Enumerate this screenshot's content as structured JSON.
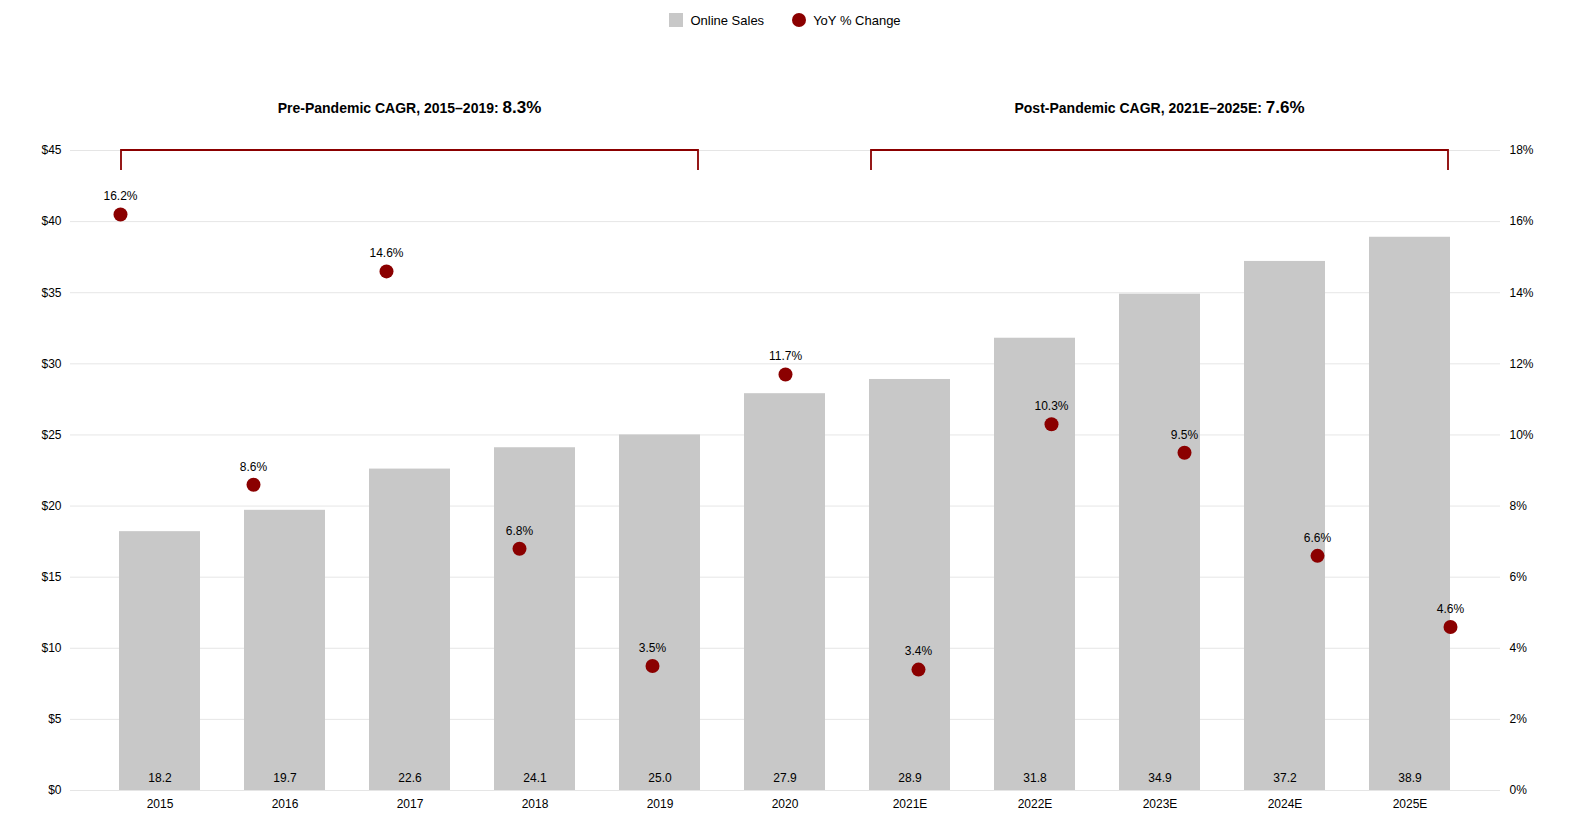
{
  "chart_data": {
    "type": "bar",
    "categories": [
      "2015",
      "2016",
      "2017",
      "2018",
      "2019",
      "2020",
      "2021E",
      "2022E",
      "2023E",
      "2024E",
      "2025E"
    ],
    "series": [
      {
        "name": "Online Sales",
        "type": "bar",
        "color": "#c8c8c8",
        "values": [
          18.2,
          19.7,
          22.6,
          24.1,
          25.0,
          27.9,
          28.9,
          31.8,
          34.9,
          37.2,
          38.9
        ],
        "value_labels": [
          "18.2",
          "19.7",
          "22.6",
          "24.1",
          "25.0",
          "27.9",
          "28.9",
          "31.8",
          "34.9",
          "37.2",
          "38.9"
        ]
      },
      {
        "name": "YoY % Change",
        "type": "scatter",
        "axis": "y2",
        "color": "#8b0000",
        "marker": "circle",
        "values": [
          16.2,
          8.6,
          14.6,
          6.8,
          3.5,
          11.7,
          3.4,
          10.3,
          9.5,
          6.6,
          4.6
        ],
        "value_labels": [
          "16.2%",
          "8.6%",
          "14.6%",
          "6.8%",
          "3.5%",
          "11.7%",
          "3.4%",
          "10.3%",
          "9.5%",
          "6.6%",
          "4.6%"
        ]
      }
    ],
    "ylim": [
      0,
      45
    ],
    "yticks": [
      {
        "value": 0,
        "label": "$0"
      },
      {
        "value": 5,
        "label": "$5"
      },
      {
        "value": 10,
        "label": "$10"
      },
      {
        "value": 15,
        "label": "$15"
      },
      {
        "value": 20,
        "label": "$20"
      },
      {
        "value": 25,
        "label": "$25"
      },
      {
        "value": 30,
        "label": "$30"
      },
      {
        "value": 35,
        "label": "$35"
      },
      {
        "value": 40,
        "label": "$40"
      },
      {
        "value": 45,
        "label": "$45"
      }
    ],
    "y2lim": [
      0,
      18
    ],
    "y2ticks": [
      {
        "value": 0,
        "label": "0%"
      },
      {
        "value": 2,
        "label": "2%"
      },
      {
        "value": 4,
        "label": "4%"
      },
      {
        "value": 6,
        "label": "6%"
      },
      {
        "value": 8,
        "label": "8%"
      },
      {
        "value": 10,
        "label": "10%"
      },
      {
        "value": 12,
        "label": "12%"
      },
      {
        "value": 14,
        "label": "14%"
      },
      {
        "value": 16,
        "label": "16%"
      },
      {
        "value": 18,
        "label": "18%"
      }
    ],
    "grid": true,
    "legend": "top",
    "data_labels": true,
    "annotations": [
      {
        "text": "Pre-Pandemic CAGR, 2015–2019: ",
        "value": 8.3,
        "label": "8.3%",
        "from": "2015",
        "to": "2019",
        "color": "#8b0000"
      },
      {
        "text": "Post-Pandemic CAGR, 2021E–2025E: ",
        "value": 7.6,
        "label": "7.6%",
        "from": "2021E",
        "to": "2025E",
        "color": "#8b0000"
      }
    ]
  }
}
